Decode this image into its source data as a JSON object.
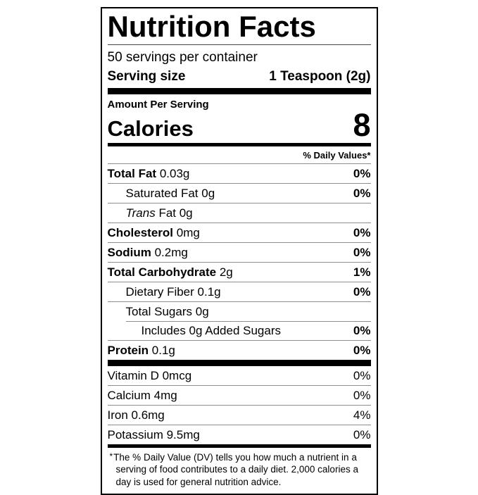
{
  "label": {
    "title": "Nutrition Facts",
    "servings_per_container": "50 servings per container",
    "serving_size_label": "Serving size",
    "serving_size_value": "1 Teaspoon (2g)",
    "amount_per_serving": "Amount Per Serving",
    "calories_label": "Calories",
    "calories_value": "8",
    "daily_values_header": "% Daily Values*",
    "nutrients": [
      {
        "name": "Total Fat",
        "amount": "0.03g",
        "dv": "0%",
        "indent": 0,
        "bold": true
      },
      {
        "name": "Saturated Fat",
        "amount": "0g",
        "dv": "0%",
        "indent": 1,
        "bold": false
      },
      {
        "name": "Trans",
        "amount": "Fat 0g",
        "dv": "",
        "indent": 1,
        "bold": false,
        "italic_name": true
      },
      {
        "name": "Cholesterol",
        "amount": "0mg",
        "dv": "0%",
        "indent": 0,
        "bold": true
      },
      {
        "name": "Sodium",
        "amount": "0.2mg",
        "dv": "0%",
        "indent": 0,
        "bold": true
      },
      {
        "name": "Total Carbohydrate",
        "amount": "2g",
        "dv": "1%",
        "indent": 0,
        "bold": true
      },
      {
        "name": "Dietary Fiber",
        "amount": "0.1g",
        "dv": "0%",
        "indent": 1,
        "bold": false
      },
      {
        "name": "Total Sugars",
        "amount": "0g",
        "dv": "",
        "indent": 1,
        "bold": false
      },
      {
        "name": "Includes 0g Added Sugars",
        "amount": "",
        "dv": "0%",
        "indent": 2,
        "bold": false
      },
      {
        "name": "Protein",
        "amount": "0.1g",
        "dv": "0%",
        "indent": 0,
        "bold": true
      }
    ],
    "micronutrients": [
      {
        "name": "Vitamin D 0mcg",
        "dv": "0%"
      },
      {
        "name": "Calcium 4mg",
        "dv": "0%"
      },
      {
        "name": "Iron 0.6mg",
        "dv": "4%"
      },
      {
        "name": "Potassium 9.5mg",
        "dv": "0%"
      }
    ],
    "footnote_marker": "*",
    "footnote": "The % Daily Value (DV) tells you how much a nutrient in a serving of food contributes to a daily diet. 2,000 calories a day is used for general nutrition advice."
  },
  "colors": {
    "ink": "#000000",
    "hairline": "#8d8d8d",
    "background": "#ffffff"
  }
}
